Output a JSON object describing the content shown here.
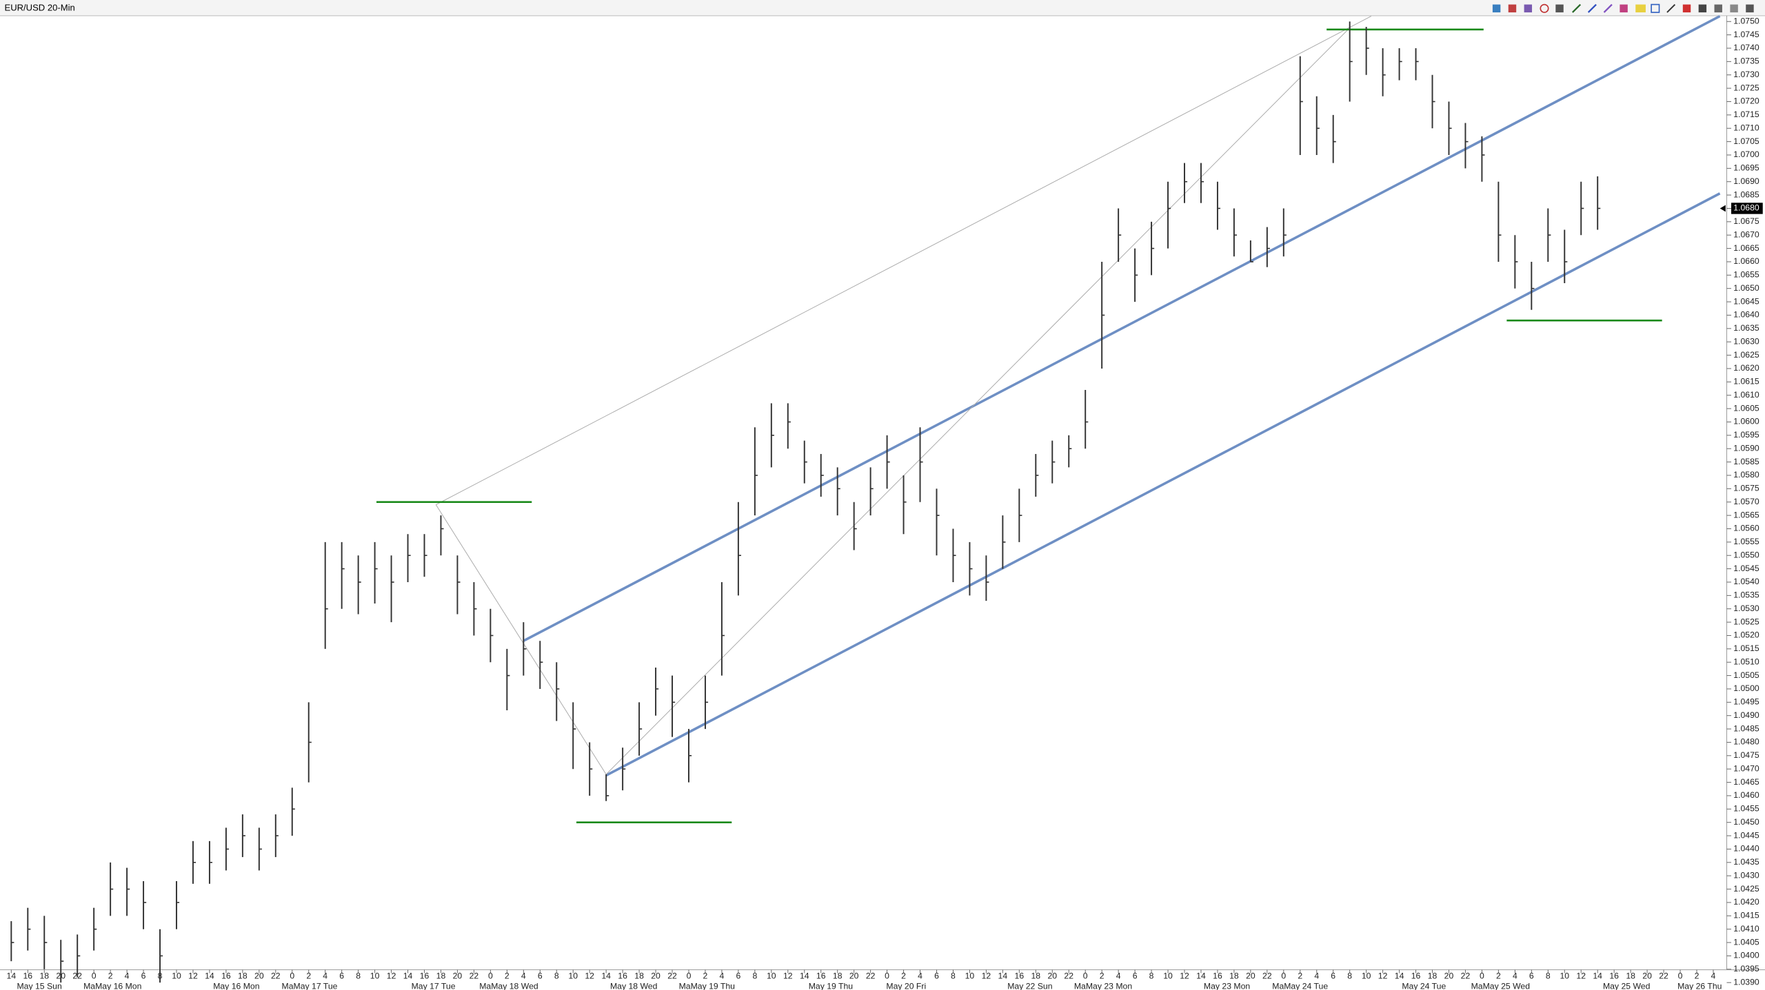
{
  "chart_data": {
    "type": "ohlc",
    "title": "EUR/USD 20-Min",
    "categories": [
      "14",
      "16",
      "18",
      "20",
      "22",
      "0",
      "2",
      "4",
      "6",
      "8",
      "10",
      "12",
      "14",
      "16",
      "18",
      "20",
      "22",
      "0",
      "2",
      "4",
      "6",
      "8",
      "10",
      "12",
      "14",
      "16",
      "18",
      "20",
      "22",
      "0",
      "2",
      "4",
      "6",
      "8",
      "10",
      "12",
      "14",
      "16",
      "18",
      "20",
      "22",
      "0",
      "2",
      "4",
      "6",
      "8",
      "10",
      "12",
      "14",
      "16",
      "18",
      "20",
      "22",
      "0",
      "2",
      "4",
      "6",
      "8",
      "10",
      "12",
      "14",
      "16",
      "18",
      "20",
      "22",
      "0",
      "2",
      "4",
      "6",
      "8",
      "10",
      "12",
      "14",
      "16",
      "18",
      "20",
      "22",
      "0",
      "2",
      "4",
      "6",
      "8",
      "10",
      "12",
      "14",
      "16",
      "18",
      "20",
      "22",
      "0",
      "2",
      "4",
      "6",
      "8",
      "10",
      "12",
      "14",
      "16",
      "18",
      "20",
      "22",
      "0",
      "2",
      "4"
    ],
    "date_labels": [
      "May 15 Sun",
      "MaMay 16 Mon",
      "May 16 Mon",
      "MaMay 17 Tue",
      "May 17 Tue",
      "MaMay 18 Wed",
      "May 18 Wed",
      "MaMay 19 Thu",
      "May 19 Thu",
      "May 20 Fri",
      "May 22 Sun",
      "MaMay 23 Mon",
      "May 23 Mon",
      "MaMay 24 Tue",
      "May 24 Tue",
      "MaMay 25 Wed",
      "May 25 Wed",
      "May 26 Thu"
    ],
    "high": [
      1.0413,
      1.0418,
      1.0415,
      1.0406,
      1.0408,
      1.0418,
      1.0435,
      1.0433,
      1.0428,
      1.041,
      1.0428,
      1.0443,
      1.0443,
      1.0448,
      1.0453,
      1.0448,
      1.0453,
      1.0463,
      1.0495,
      1.0555,
      1.0555,
      1.055,
      1.0555,
      1.055,
      1.0558,
      1.0558,
      1.0565,
      1.055,
      1.054,
      1.053,
      1.0515,
      1.0525,
      1.0518,
      1.051,
      1.0495,
      1.048,
      1.0468,
      1.0478,
      1.0495,
      1.0508,
      1.0505,
      1.0485,
      1.0505,
      1.054,
      1.057,
      1.0598,
      1.0607,
      1.0607,
      1.0593,
      1.0588,
      1.0583,
      1.057,
      1.0583,
      1.0595,
      1.058,
      1.0598,
      1.0575,
      1.056,
      1.0555,
      1.055,
      1.0565,
      1.0575,
      1.0588,
      1.0593,
      1.0595,
      1.0612,
      1.066,
      1.068,
      1.0665,
      1.0675,
      1.069,
      1.0697,
      1.0697,
      1.069,
      1.068,
      1.0668,
      1.0673,
      1.068,
      1.0737,
      1.0722,
      1.0715,
      1.075,
      1.0748,
      1.074,
      1.074,
      1.074,
      1.073,
      1.072,
      1.0712,
      1.0707,
      1.069,
      1.067,
      1.066,
      1.068,
      1.0672,
      1.069,
      1.0692,
      null,
      null,
      null,
      null,
      null,
      null,
      null
    ],
    "low": [
      1.0398,
      1.0402,
      1.0395,
      1.039,
      1.0392,
      1.0402,
      1.0415,
      1.0415,
      1.041,
      1.039,
      1.041,
      1.0427,
      1.0427,
      1.0432,
      1.0437,
      1.0432,
      1.0437,
      1.0445,
      1.0465,
      1.0515,
      1.053,
      1.0528,
      1.0532,
      1.0525,
      1.054,
      1.0542,
      1.055,
      1.0528,
      1.052,
      1.051,
      1.0492,
      1.0505,
      1.05,
      1.0488,
      1.047,
      1.046,
      1.0458,
      1.0462,
      1.0475,
      1.049,
      1.0482,
      1.0465,
      1.0485,
      1.0505,
      1.0535,
      1.0565,
      1.0583,
      1.059,
      1.0577,
      1.0572,
      1.0565,
      1.0552,
      1.0565,
      1.0575,
      1.0558,
      1.057,
      1.055,
      1.054,
      1.0535,
      1.0533,
      1.0545,
      1.0555,
      1.0572,
      1.0577,
      1.0583,
      1.059,
      1.062,
      1.066,
      1.0645,
      1.0655,
      1.0665,
      1.0682,
      1.0682,
      1.0672,
      1.0662,
      1.066,
      1.0658,
      1.0662,
      1.07,
      1.07,
      1.0697,
      1.072,
      1.073,
      1.0722,
      1.0728,
      1.0728,
      1.071,
      1.07,
      1.0695,
      1.069,
      1.066,
      1.065,
      1.0642,
      1.066,
      1.0652,
      1.067,
      1.0672,
      null,
      null,
      null,
      null,
      null,
      null,
      null
    ],
    "close": [
      1.0405,
      1.041,
      1.0405,
      1.0398,
      1.04,
      1.041,
      1.0425,
      1.0425,
      1.042,
      1.04,
      1.042,
      1.0435,
      1.0435,
      1.044,
      1.0445,
      1.044,
      1.0445,
      1.0455,
      1.048,
      1.053,
      1.0545,
      1.054,
      1.0545,
      1.054,
      1.055,
      1.055,
      1.056,
      1.054,
      1.053,
      1.052,
      1.0505,
      1.0515,
      1.051,
      1.05,
      1.0485,
      1.047,
      1.046,
      1.047,
      1.0485,
      1.05,
      1.0495,
      1.0475,
      1.0495,
      1.052,
      1.055,
      1.058,
      1.0595,
      1.06,
      1.0585,
      1.058,
      1.0575,
      1.056,
      1.0575,
      1.0585,
      1.057,
      1.0585,
      1.0565,
      1.055,
      1.0545,
      1.054,
      1.0555,
      1.0565,
      1.058,
      1.0585,
      1.059,
      1.06,
      1.064,
      1.067,
      1.0655,
      1.0665,
      1.068,
      1.069,
      1.069,
      1.068,
      1.067,
      1.066,
      1.0665,
      1.067,
      1.072,
      1.071,
      1.0705,
      1.0735,
      1.074,
      1.073,
      1.0735,
      1.0735,
      1.072,
      1.071,
      1.0705,
      1.07,
      1.067,
      1.066,
      1.065,
      1.067,
      1.066,
      1.068,
      1.068,
      null,
      null,
      null,
      null,
      null,
      null,
      null
    ],
    "bar_color": "#333333",
    "ylim": [
      1.0383,
      1.0753
    ],
    "yticks": [
      1.0385,
      {
        "value": 1.039,
        "label": "1.0390"
      },
      1.0395,
      {
        "value": 1.04,
        "label": "1.0400"
      },
      1.0405,
      {
        "value": 1.041,
        "label": "1.0410"
      },
      1.0415,
      {
        "value": 1.042,
        "label": "1.0420"
      },
      1.0425,
      {
        "value": 1.043,
        "label": "1.0430"
      },
      1.0435,
      {
        "value": 1.044,
        "label": "1.0440"
      },
      1.0445,
      {
        "value": 1.045,
        "label": "1.0450"
      },
      1.0455,
      {
        "value": 1.046,
        "label": "1.0460"
      },
      1.0465,
      {
        "value": 1.047,
        "label": "1.0470"
      },
      1.0475,
      {
        "value": 1.048,
        "label": "1.0480"
      },
      1.0485,
      {
        "value": 1.049,
        "label": "1.0490"
      },
      1.0495,
      {
        "value": 1.05,
        "label": "1.0500"
      },
      1.0505,
      {
        "value": 1.051,
        "label": "1.0510"
      },
      1.0515,
      {
        "value": 1.052,
        "label": "1.0520"
      },
      1.0525,
      {
        "value": 1.053,
        "label": "1.0530"
      },
      1.0535,
      {
        "value": 1.054,
        "label": "1.0540"
      },
      1.0545,
      {
        "value": 1.055,
        "label": "1.0550"
      },
      1.0555,
      {
        "value": 1.056,
        "label": "1.0560"
      },
      1.0565,
      {
        "value": 1.057,
        "label": "1.0570"
      },
      1.0575,
      {
        "value": 1.058,
        "label": "1.0580"
      },
      1.0585,
      {
        "value": 1.059,
        "label": "1.0590"
      },
      1.0595,
      {
        "value": 1.06,
        "label": "1.0600"
      },
      1.0605,
      {
        "value": 1.061,
        "label": "1.0610"
      },
      1.0615,
      {
        "value": 1.062,
        "label": "1.0620"
      },
      1.0625,
      {
        "value": 1.063,
        "label": "1.0630"
      },
      1.0635,
      {
        "value": 1.064,
        "label": "1.0640"
      },
      1.0645,
      {
        "value": 1.065,
        "label": "1.0650"
      },
      1.0655,
      {
        "value": 1.066,
        "label": "1.0660"
      },
      1.0665,
      {
        "value": 1.067,
        "label": "1.0670"
      },
      1.0675,
      {
        "value": 1.068,
        "label": "1.0680"
      },
      1.0685,
      {
        "value": 1.069,
        "label": "1.0690"
      },
      1.0695,
      {
        "value": 1.07,
        "label": "1.0700"
      },
      1.0705,
      {
        "value": 1.071,
        "label": "1.0710"
      },
      1.0715,
      {
        "value": 1.072,
        "label": "1.0720"
      },
      1.0725,
      {
        "value": 1.073,
        "label": "1.0730"
      },
      1.0735,
      {
        "value": 1.074,
        "label": "1.0740"
      },
      1.0745,
      {
        "value": 1.075,
        "label": "1.0750"
      }
    ],
    "last_price": {
      "value": 1.068,
      "label": "1.0680"
    },
    "levels": [
      {
        "value": 1.057,
        "x": [
          22.1,
          31.5
        ],
        "color": "#1a8a1a"
      },
      {
        "value": 1.045,
        "x": [
          34.2,
          43.6
        ],
        "color": "#1a8a1a"
      },
      {
        "value": 1.0747,
        "x": [
          79.6,
          89.1
        ],
        "color": "#1a8a1a"
      },
      {
        "value": 1.0638,
        "x": [
          90.5,
          99.9
        ],
        "color": "#1a8a1a"
      }
    ],
    "trend_lines": [
      {
        "x": [
          31.0,
          103.4
        ],
        "y": [
          1.0518,
          1.0752
        ],
        "color": "#6e8fc4"
      },
      {
        "x": [
          36.0,
          103.4
        ],
        "y": [
          1.04676,
          1.06856
        ],
        "color": "#6e8fc4"
      },
      {
        "x": [
          25.7,
          82.3
        ],
        "y": [
          1.0569,
          1.0752
        ],
        "color": "#aaaaaa"
      },
      {
        "x": [
          25.7,
          36.0,
          80.9
        ],
        "y": [
          1.0569,
          1.0468,
          1.0747
        ],
        "color": "#aaaaaa"
      }
    ]
  }
}
